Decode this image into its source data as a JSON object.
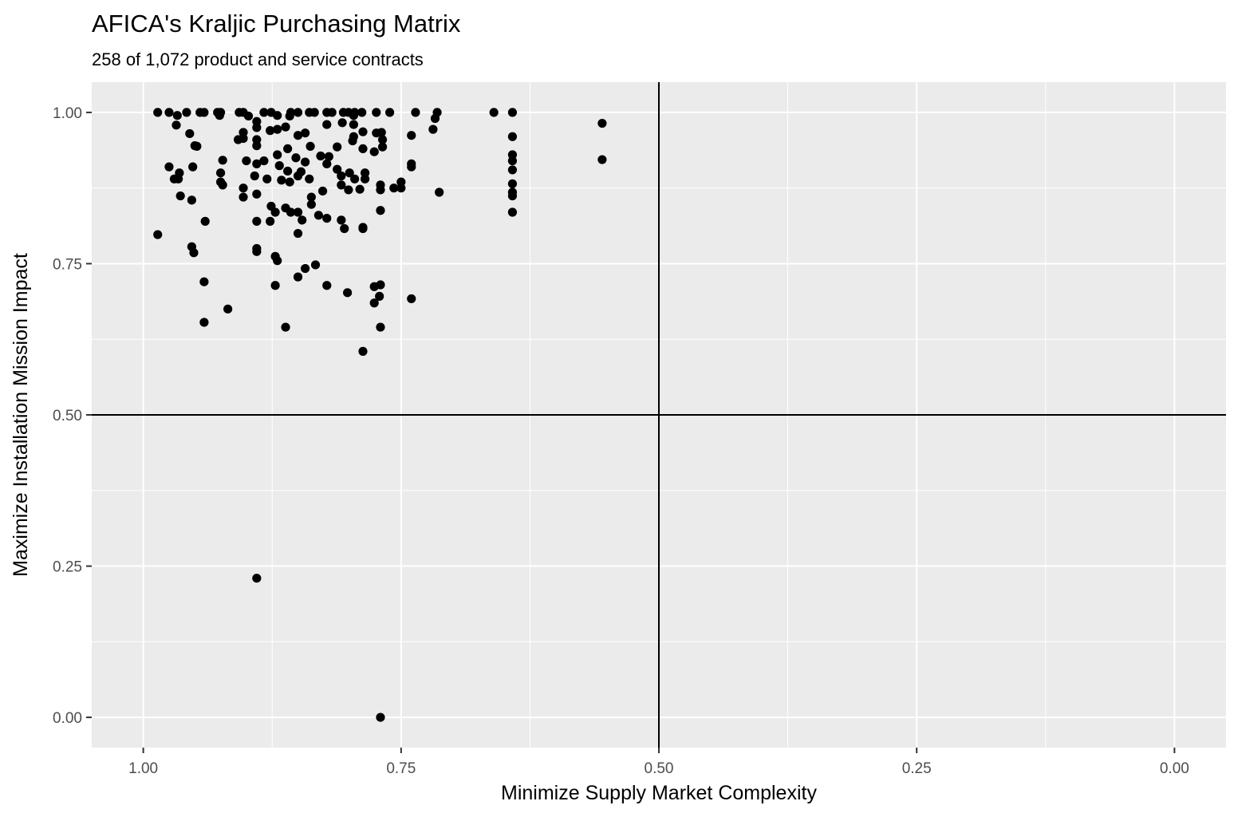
{
  "chart_data": {
    "type": "scatter",
    "title": "AFICA's Kraljic Purchasing Matrix",
    "subtitle": "258 of 1,072 product and service contracts",
    "xlabel": "Minimize Supply Market Complexity",
    "ylabel": "Maximize Installation Mission Impact",
    "xlim": [
      1.05,
      -0.05
    ],
    "ylim": [
      -0.05,
      1.05
    ],
    "x_reversed": true,
    "x_ticks": [
      1.0,
      0.75,
      0.5,
      0.25,
      0.0
    ],
    "x_tick_labels": [
      "1.00",
      "0.75",
      "0.50",
      "0.25",
      "0.00"
    ],
    "y_ticks": [
      0.0,
      0.25,
      0.5,
      0.75,
      1.0
    ],
    "y_tick_labels": [
      "0.00",
      "0.25",
      "0.50",
      "0.75",
      "1.00"
    ],
    "grid": true,
    "reference_lines": {
      "x": 0.5,
      "y": 0.5
    },
    "colors": {
      "panel": "#ebebeb",
      "grid": "#ffffff",
      "point": "#000000",
      "reference": "#000000"
    },
    "points": [
      [
        0.986,
        1.0
      ],
      [
        0.975,
        1.0
      ],
      [
        0.958,
        1.0
      ],
      [
        0.945,
        1.0
      ],
      [
        0.941,
        1.0
      ],
      [
        0.928,
        1.0
      ],
      [
        0.925,
        1.0
      ],
      [
        0.907,
        1.0
      ],
      [
        0.903,
        1.0
      ],
      [
        0.883,
        1.0
      ],
      [
        0.876,
        1.0
      ],
      [
        0.857,
        1.0
      ],
      [
        0.85,
        1.0
      ],
      [
        0.839,
        1.0
      ],
      [
        0.834,
        1.0
      ],
      [
        0.822,
        1.0
      ],
      [
        0.817,
        1.0
      ],
      [
        0.806,
        1.0
      ],
      [
        0.801,
        1.0
      ],
      [
        0.795,
        1.0
      ],
      [
        0.788,
        1.0
      ],
      [
        0.774,
        1.0
      ],
      [
        0.761,
        1.0
      ],
      [
        0.736,
        1.0
      ],
      [
        0.66,
        1.0
      ],
      [
        0.642,
        1.0
      ],
      [
        0.967,
        0.995
      ],
      [
        0.926,
        0.995
      ],
      [
        0.898,
        0.994
      ],
      [
        0.87,
        0.995
      ],
      [
        0.858,
        0.994
      ],
      [
        0.796,
        0.995
      ],
      [
        0.715,
        1.0
      ],
      [
        0.968,
        0.979
      ],
      [
        0.955,
        0.965
      ],
      [
        0.903,
        0.967
      ],
      [
        0.903,
        0.957
      ],
      [
        0.89,
        0.985
      ],
      [
        0.89,
        0.975
      ],
      [
        0.877,
        0.97
      ],
      [
        0.87,
        0.972
      ],
      [
        0.862,
        0.976
      ],
      [
        0.85,
        0.962
      ],
      [
        0.843,
        0.966
      ],
      [
        0.822,
        0.98
      ],
      [
        0.807,
        0.983
      ],
      [
        0.796,
        0.98
      ],
      [
        0.796,
        0.96
      ],
      [
        0.787,
        0.968
      ],
      [
        0.774,
        0.966
      ],
      [
        0.769,
        0.967
      ],
      [
        0.717,
        0.99
      ],
      [
        0.719,
        0.972
      ],
      [
        0.74,
        0.962
      ],
      [
        0.642,
        0.96
      ],
      [
        0.555,
        0.982
      ],
      [
        0.95,
        0.945
      ],
      [
        0.948,
        0.944
      ],
      [
        0.908,
        0.955
      ],
      [
        0.89,
        0.955
      ],
      [
        0.89,
        0.945
      ],
      [
        0.87,
        0.93
      ],
      [
        0.86,
        0.94
      ],
      [
        0.838,
        0.944
      ],
      [
        0.828,
        0.928
      ],
      [
        0.82,
        0.927
      ],
      [
        0.812,
        0.943
      ],
      [
        0.797,
        0.953
      ],
      [
        0.787,
        0.94
      ],
      [
        0.776,
        0.935
      ],
      [
        0.768,
        0.955
      ],
      [
        0.768,
        0.943
      ],
      [
        0.642,
        0.93
      ],
      [
        0.642,
        0.92
      ],
      [
        0.555,
        0.922
      ],
      [
        0.975,
        0.91
      ],
      [
        0.965,
        0.9
      ],
      [
        0.952,
        0.91
      ],
      [
        0.925,
        0.9
      ],
      [
        0.923,
        0.921
      ],
      [
        0.9,
        0.92
      ],
      [
        0.89,
        0.915
      ],
      [
        0.883,
        0.92
      ],
      [
        0.868,
        0.912
      ],
      [
        0.86,
        0.903
      ],
      [
        0.852,
        0.925
      ],
      [
        0.847,
        0.902
      ],
      [
        0.843,
        0.918
      ],
      [
        0.839,
        0.89
      ],
      [
        0.822,
        0.915
      ],
      [
        0.812,
        0.906
      ],
      [
        0.808,
        0.895
      ],
      [
        0.8,
        0.9
      ],
      [
        0.795,
        0.89
      ],
      [
        0.785,
        0.9
      ],
      [
        0.77,
        0.88
      ],
      [
        0.74,
        0.915
      ],
      [
        0.74,
        0.91
      ],
      [
        0.642,
        0.905
      ],
      [
        0.97,
        0.89
      ],
      [
        0.966,
        0.89
      ],
      [
        0.925,
        0.885
      ],
      [
        0.923,
        0.88
      ],
      [
        0.903,
        0.875
      ],
      [
        0.892,
        0.895
      ],
      [
        0.88,
        0.89
      ],
      [
        0.866,
        0.888
      ],
      [
        0.858,
        0.885
      ],
      [
        0.85,
        0.895
      ],
      [
        0.837,
        0.86
      ],
      [
        0.826,
        0.87
      ],
      [
        0.808,
        0.88
      ],
      [
        0.801,
        0.872
      ],
      [
        0.79,
        0.873
      ],
      [
        0.785,
        0.89
      ],
      [
        0.77,
        0.872
      ],
      [
        0.757,
        0.875
      ],
      [
        0.75,
        0.885
      ],
      [
        0.75,
        0.875
      ],
      [
        0.713,
        0.868
      ],
      [
        0.642,
        0.882
      ],
      [
        0.642,
        0.868
      ],
      [
        0.964,
        0.862
      ],
      [
        0.953,
        0.855
      ],
      [
        0.903,
        0.86
      ],
      [
        0.89,
        0.865
      ],
      [
        0.876,
        0.845
      ],
      [
        0.862,
        0.842
      ],
      [
        0.857,
        0.835
      ],
      [
        0.837,
        0.848
      ],
      [
        0.77,
        0.838
      ],
      [
        0.642,
        0.862
      ],
      [
        0.642,
        0.835
      ],
      [
        0.986,
        0.798
      ],
      [
        0.94,
        0.82
      ],
      [
        0.89,
        0.82
      ],
      [
        0.877,
        0.82
      ],
      [
        0.872,
        0.835
      ],
      [
        0.85,
        0.835
      ],
      [
        0.85,
        0.8
      ],
      [
        0.846,
        0.822
      ],
      [
        0.83,
        0.83
      ],
      [
        0.822,
        0.825
      ],
      [
        0.808,
        0.822
      ],
      [
        0.805,
        0.808
      ],
      [
        0.787,
        0.808
      ],
      [
        0.787,
        0.81
      ],
      [
        0.953,
        0.778
      ],
      [
        0.951,
        0.768
      ],
      [
        0.89,
        0.775
      ],
      [
        0.89,
        0.77
      ],
      [
        0.872,
        0.762
      ],
      [
        0.87,
        0.755
      ],
      [
        0.843,
        0.742
      ],
      [
        0.85,
        0.728
      ],
      [
        0.833,
        0.748
      ],
      [
        0.822,
        0.714
      ],
      [
        0.872,
        0.714
      ],
      [
        0.941,
        0.72
      ],
      [
        0.802,
        0.702
      ],
      [
        0.776,
        0.712
      ],
      [
        0.77,
        0.715
      ],
      [
        0.771,
        0.696
      ],
      [
        0.776,
        0.685
      ],
      [
        0.74,
        0.692
      ],
      [
        0.918,
        0.675
      ],
      [
        0.941,
        0.653
      ],
      [
        0.862,
        0.645
      ],
      [
        0.77,
        0.645
      ],
      [
        0.787,
        0.605
      ],
      [
        0.89,
        0.23
      ],
      [
        0.77,
        0.0
      ]
    ]
  }
}
